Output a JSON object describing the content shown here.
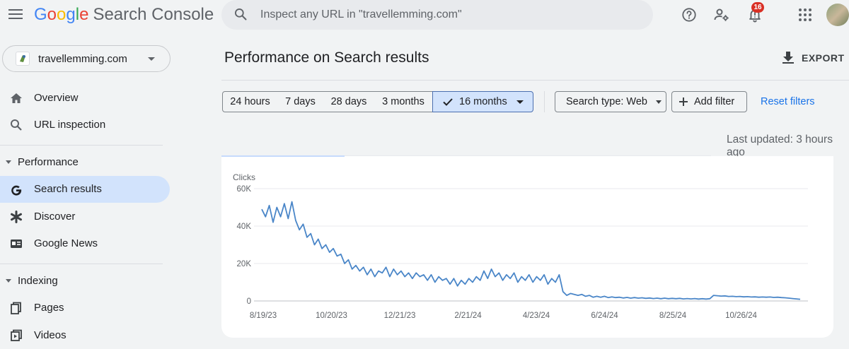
{
  "header": {
    "logo_letters": [
      "G",
      "o",
      "o",
      "g",
      "l",
      "e"
    ],
    "product_name": "Search Console",
    "search_placeholder": "Inspect any URL in \"travellemming.com\"",
    "notification_count": "16"
  },
  "sidebar": {
    "property": "travellemming.com",
    "items": [
      {
        "label": "Overview",
        "icon": "home-icon"
      },
      {
        "label": "URL inspection",
        "icon": "search-icon"
      }
    ],
    "performance_section": "Performance",
    "performance_items": [
      {
        "label": "Search results",
        "icon": "google-g-icon",
        "active": true
      },
      {
        "label": "Discover",
        "icon": "asterisk-icon"
      },
      {
        "label": "Google News",
        "icon": "news-icon"
      }
    ],
    "indexing_section": "Indexing",
    "indexing_items": [
      {
        "label": "Pages",
        "icon": "pages-icon"
      },
      {
        "label": "Videos",
        "icon": "video-icon"
      }
    ]
  },
  "main": {
    "title": "Performance on Search results",
    "export_label": "EXPORT",
    "date_ranges": [
      "24 hours",
      "7 days",
      "28 days",
      "3 months",
      "16 months"
    ],
    "selected_range": "16 months",
    "search_type": "Search type: Web",
    "add_filter": "Add filter",
    "reset_filters": "Reset filters",
    "last_updated": "Last updated: 3 hours ago"
  },
  "colors": {
    "accent": "#1a73e8",
    "selected_bg": "#d2e3fc",
    "line": "#4a86c8"
  },
  "chart_data": {
    "type": "line",
    "ylabel": "Clicks",
    "ylim": [
      0,
      60000
    ],
    "yticks": [
      "60K",
      "40K",
      "20K",
      "0"
    ],
    "ytick_values": [
      60000,
      40000,
      20000,
      0
    ],
    "xticks": [
      "8/19/23",
      "10/20/23",
      "12/21/23",
      "2/21/24",
      "4/23/24",
      "6/24/24",
      "8/25/24",
      "10/26/24"
    ],
    "grid": true,
    "series": [
      {
        "values": [
          49000,
          45000,
          51000,
          42000,
          50000,
          45000,
          52000,
          44000,
          53000,
          43000,
          38000,
          41000,
          34000,
          36000,
          30000,
          33000,
          28000,
          30000,
          26000,
          28000,
          24000,
          25000,
          20000,
          22000,
          17000,
          19000,
          16000,
          18000,
          14000,
          17000,
          13000,
          16000,
          15000,
          18000,
          13000,
          17000,
          14000,
          16000,
          13000,
          15000,
          12000,
          15000,
          13000,
          14000,
          11000,
          14000,
          10000,
          13000,
          11000,
          12000,
          9000,
          12000,
          8000,
          11000,
          9000,
          12000,
          10000,
          13000,
          11000,
          16000,
          12000,
          17000,
          13000,
          15000,
          11000,
          14000,
          12000,
          15000,
          10000,
          13000,
          11000,
          14000,
          10000,
          13000,
          11000,
          14000,
          9000,
          12000,
          10000,
          14000,
          5000,
          3000,
          4000,
          3500,
          3000,
          3500,
          2500,
          3000,
          2000,
          2500,
          2000,
          2500,
          1800,
          2200,
          1800,
          2000,
          1600,
          1900,
          1500,
          1800,
          1500,
          1700,
          1400,
          1600,
          1300,
          1500,
          1200,
          1500,
          1200,
          1400,
          1200,
          1400,
          1100,
          1300,
          1100,
          1300,
          1000,
          1200,
          1000,
          1200,
          3000,
          2800,
          2600,
          2700,
          2400,
          2500,
          2300,
          2400,
          2200,
          2300,
          2100,
          2200,
          2000,
          2100,
          2000,
          2100,
          1900,
          2000,
          1800,
          1700,
          1500,
          1300,
          1100,
          900
        ]
      }
    ]
  }
}
